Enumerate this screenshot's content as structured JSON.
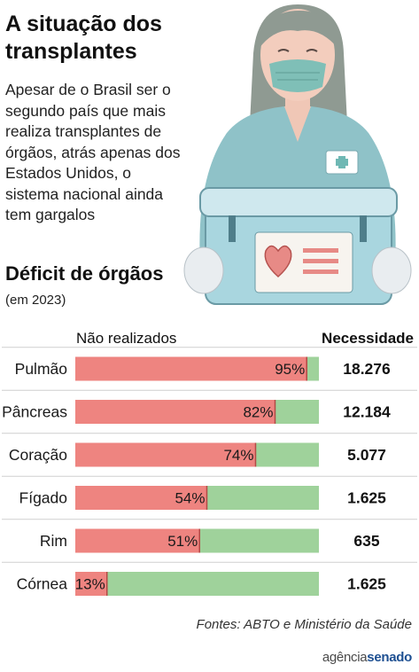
{
  "header": {
    "title": "A situação dos transplantes",
    "intro": "Apesar de o Brasil ser o segundo país que mais realiza transplantes de órgãos, atrás apenas dos Estados Unidos, o sistema nacional ainda tem gargalos"
  },
  "chart_data": {
    "type": "bar",
    "title": "Déficit de órgãos",
    "subtitle": "(em 2023)",
    "left_column_header": "Não realizados",
    "right_column_header": "Necessidade",
    "categories": [
      "Pulmão",
      "Pâncreas",
      "Coração",
      "Fígado",
      "Rim",
      "Córnea"
    ],
    "values": [
      95,
      82,
      74,
      54,
      51,
      13
    ],
    "value_labels": [
      "95%",
      "82%",
      "74%",
      "54%",
      "51%",
      "13%"
    ],
    "necessidade": [
      "18.276",
      "12.184",
      "5.077",
      "1.625",
      "635",
      "1.625"
    ],
    "xlim": [
      0,
      100
    ],
    "colors": {
      "not_done": "#ee8480",
      "remainder": "#9fd29b"
    },
    "grid": false
  },
  "footer": {
    "source": "Fontes: ABTO e Ministério da Saúde",
    "logo_a": "agência",
    "logo_b": "senado"
  }
}
